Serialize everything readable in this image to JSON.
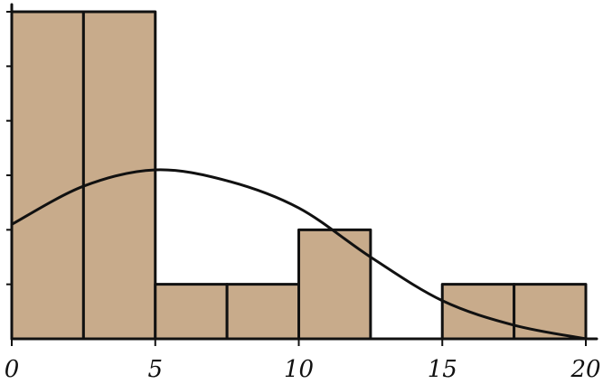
{
  "chart_data": {
    "type": "bar",
    "subtype": "histogram-with-density-curve",
    "bin_width": 2.5,
    "bins": [
      {
        "x0": 0,
        "x1": 2.5,
        "value": 6
      },
      {
        "x0": 2.5,
        "x1": 5,
        "value": 6
      },
      {
        "x0": 5,
        "x1": 7.5,
        "value": 1
      },
      {
        "x0": 7.5,
        "x1": 10,
        "value": 1
      },
      {
        "x0": 10,
        "x1": 12.5,
        "value": 2
      },
      {
        "x0": 12.5,
        "x1": 15,
        "value": 0
      },
      {
        "x0": 15,
        "x1": 17.5,
        "value": 1
      },
      {
        "x0": 17.5,
        "x1": 20,
        "value": 1
      }
    ],
    "curve": {
      "type": "smooth",
      "points": [
        {
          "x": 0,
          "y": 2.1
        },
        {
          "x": 2.5,
          "y": 2.8
        },
        {
          "x": 5,
          "y": 3.1
        },
        {
          "x": 7.5,
          "y": 2.9
        },
        {
          "x": 10,
          "y": 2.4
        },
        {
          "x": 12.5,
          "y": 1.5
        },
        {
          "x": 15,
          "y": 0.7
        },
        {
          "x": 17.5,
          "y": 0.25
        },
        {
          "x": 20,
          "y": 0.0
        }
      ]
    },
    "x_ticks": [
      "0",
      "5",
      "10",
      "15",
      "20"
    ],
    "x_tick_values": [
      0,
      5,
      10,
      15,
      20
    ],
    "y_tick_values": [
      0,
      1,
      2,
      3,
      4,
      5,
      6
    ],
    "xlim": [
      0,
      20
    ],
    "ylim": [
      0,
      6
    ],
    "title": "",
    "xlabel": "",
    "ylabel": "",
    "grid": false,
    "colors": {
      "bar_fill": "#c8ab8b",
      "bar_stroke": "#111111",
      "axis": "#111111",
      "curve": "#111111"
    }
  }
}
